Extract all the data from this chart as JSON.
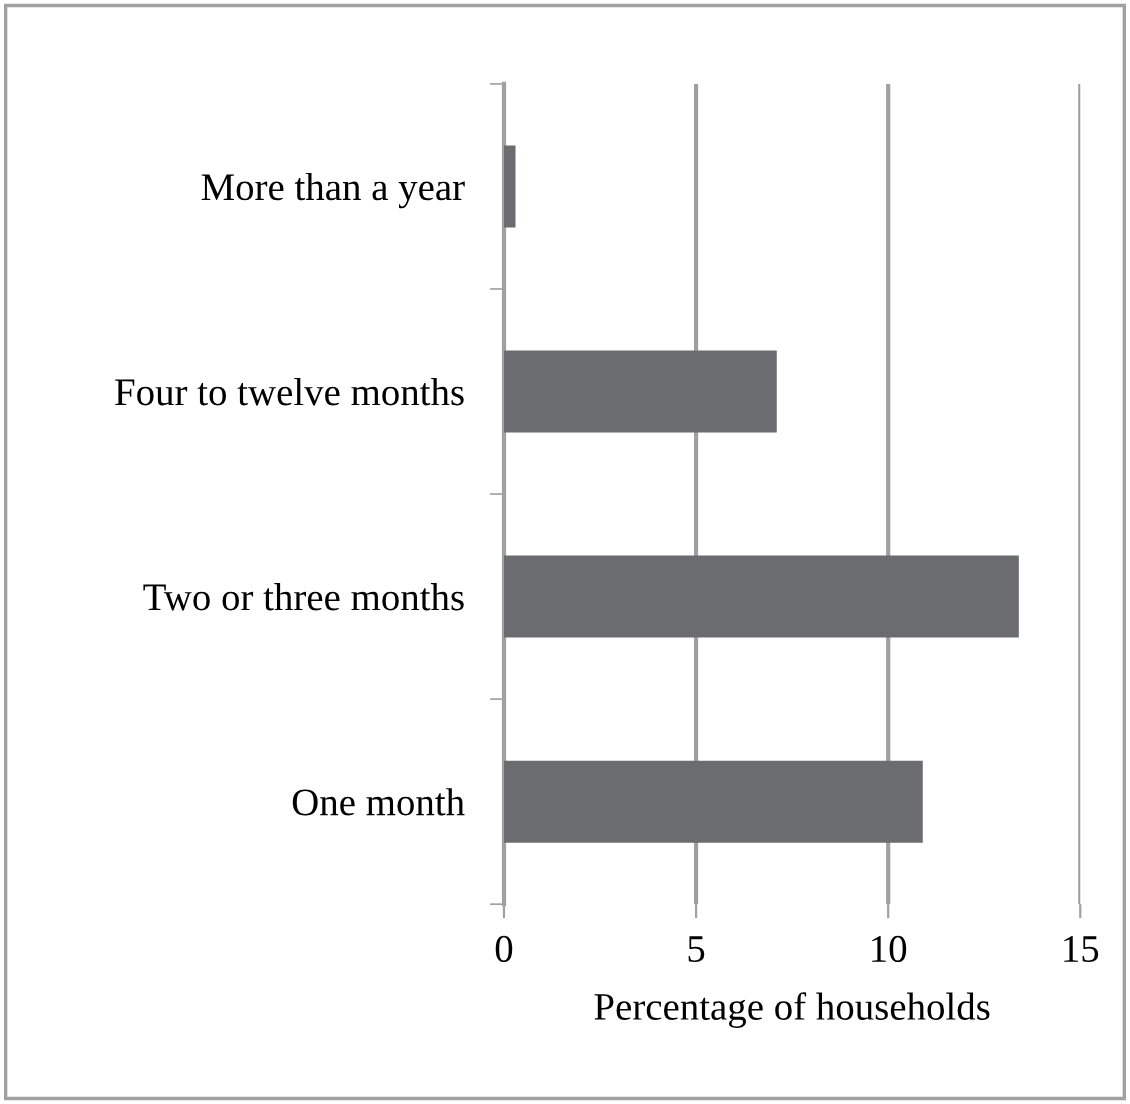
{
  "chart_data": {
    "type": "bar",
    "orientation": "horizontal",
    "categories": [
      "More than a year",
      "Four to twelve months",
      "Two or three months",
      "One month"
    ],
    "values": [
      0.3,
      7.1,
      13.4,
      10.9
    ],
    "color": "#6b6c70",
    "xlabel": "Percentage of households",
    "xlim": [
      0,
      15
    ],
    "xticks": [
      0,
      5,
      10,
      15
    ],
    "grid": "x"
  }
}
